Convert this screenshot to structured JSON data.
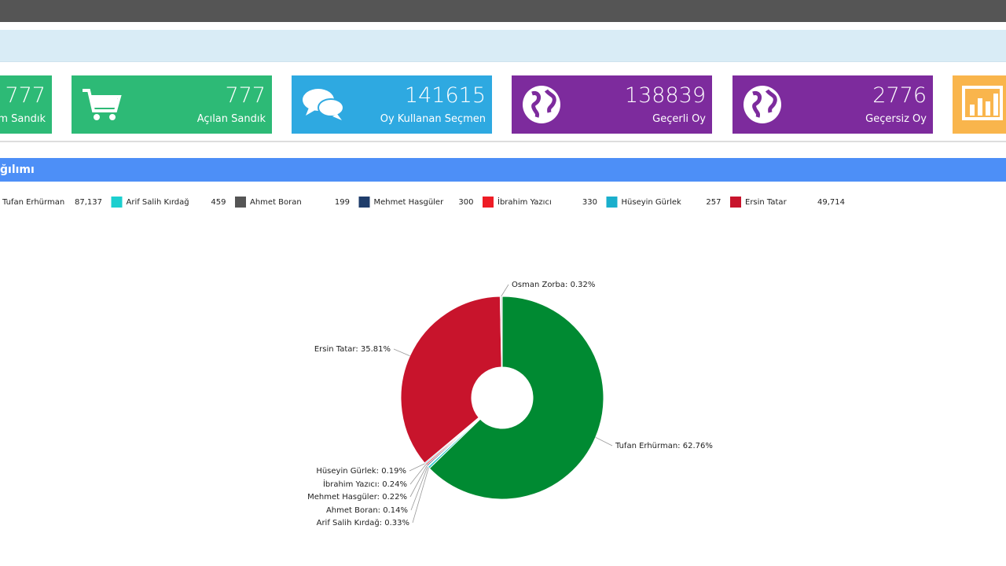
{
  "cards": [
    {
      "value": 777,
      "label": "am Sandık",
      "color": "#2dba76",
      "icon": "box"
    },
    {
      "value": 777,
      "label": "Açılan Sandık",
      "color": "#2dba76",
      "icon": "cart"
    },
    {
      "value": 141615,
      "label": "Oy Kullanan Seçmen",
      "color": "#2ea9e1",
      "icon": "chat"
    },
    {
      "value": 138839,
      "label": "Geçerli Oy",
      "color": "#7d2b9d",
      "icon": "globe"
    },
    {
      "value": 2776,
      "label": "Geçersiz Oy",
      "color": "#7d2b9d",
      "icon": "globe"
    },
    {
      "value": null,
      "label": null,
      "color": "#f9b54c",
      "icon": "bars"
    }
  ],
  "section": {
    "title": "ğılımı"
  },
  "legend": [
    {
      "name": "Tufan Erhürman",
      "count": "87,137",
      "color": "#008a32"
    },
    {
      "name": "Arif Salih Kırdağ",
      "count": "459",
      "color": "#1ccfcf"
    },
    {
      "name": "Ahmet Boran",
      "count": "199",
      "color": "#555555"
    },
    {
      "name": "Mehmet Hasgüler",
      "count": "300",
      "color": "#1f3d6b"
    },
    {
      "name": "İbrahim Yazıcı",
      "count": "330",
      "color": "#ee1c25"
    },
    {
      "name": "Hüseyin Gürlek",
      "count": "257",
      "color": "#1aafcc"
    },
    {
      "name": "Ersin Tatar",
      "count": "49,714",
      "color": "#c8142c"
    }
  ],
  "chart_data": {
    "type": "pie",
    "donut": true,
    "categories": [
      "Tufan Erhürman",
      "Arif Salih Kırdağ",
      "Ahmet Boran",
      "Mehmet Hasgüler",
      "İbrahim Yazıcı",
      "Hüseyin Gürlek",
      "Ersin Tatar",
      "Osman Zorba"
    ],
    "values": [
      62.76,
      0.33,
      0.14,
      0.22,
      0.24,
      0.19,
      35.81,
      0.32
    ],
    "value_labels": [
      "Tufan Erhürman: 62.76%",
      "Arif Salih Kırdağ: 0.33%",
      "Ahmet Boran: 0.14%",
      "Mehmet Hasgüler: 0.22%",
      "İbrahim Yazıcı: 0.24%",
      "Hüseyin Gürlek: 0.19%",
      "Ersin Tatar: 35.81%",
      "Osman Zorba: 0.32%"
    ],
    "colors": [
      "#008a32",
      "#1ccfcf",
      "#555555",
      "#1f3d6b",
      "#ee1c25",
      "#1aafcc",
      "#c8142c",
      "#dddddd"
    ]
  }
}
